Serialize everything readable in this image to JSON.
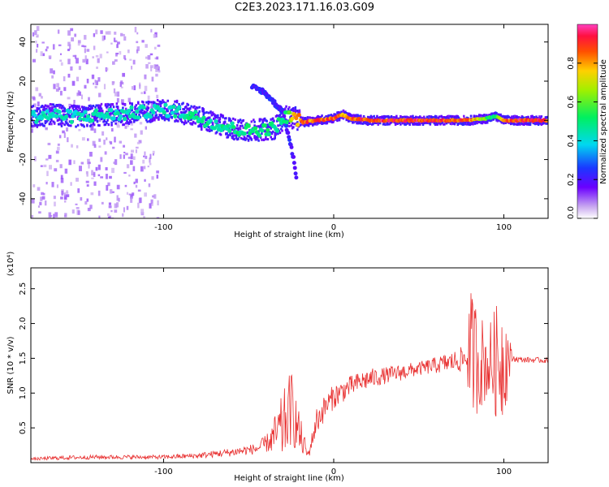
{
  "title": "C2E3.2023.171.16.03.G09",
  "chart_data": [
    {
      "type": "heatmap",
      "title": "C2E3.2023.171.16.03.G09",
      "xlabel": "Height of straight line (km)",
      "ylabel": "Frequency (Hz)",
      "xlim": [
        -178,
        126
      ],
      "ylim": [
        -50,
        49
      ],
      "x_ticks": [
        -100,
        0,
        100
      ],
      "x_tick_labels": [
        "-100",
        "0",
        "100"
      ],
      "y_ticks": [
        -40,
        -20,
        0,
        20,
        40
      ],
      "y_tick_labels": [
        "-40",
        "-20",
        "0",
        "20",
        "40"
      ],
      "colorbar": {
        "label": "Normalized spectral amplitude",
        "range": [
          0,
          1
        ],
        "ticks": [
          0.0,
          0.2,
          0.4,
          0.6,
          0.8
        ],
        "tick_labels": [
          "0.0",
          "0.2",
          "0.4",
          "0.6",
          "0.8"
        ]
      },
      "ridge": {
        "x": [
          -176,
          -165,
          -155,
          -145,
          -135,
          -125,
          -115,
          -105,
          -95,
          -85,
          -75,
          -65,
          -55,
          -45,
          -35,
          -28,
          -22,
          -18,
          -10,
          0,
          5,
          10,
          20,
          40,
          60,
          80,
          90,
          95,
          100,
          110,
          126
        ],
        "frequency": [
          2,
          3,
          2,
          2,
          3,
          3,
          4,
          5,
          5,
          3,
          0,
          -3,
          -5,
          -5,
          -4,
          2,
          1,
          -1,
          0,
          1,
          3,
          1,
          0,
          0,
          0,
          0,
          1,
          2,
          0,
          0,
          0
        ],
        "amplitude": [
          0.45,
          0.45,
          0.45,
          0.45,
          0.45,
          0.45,
          0.45,
          0.45,
          0.45,
          0.5,
          0.5,
          0.5,
          0.5,
          0.55,
          0.5,
          0.55,
          0.85,
          0.9,
          0.9,
          0.9,
          0.85,
          0.9,
          0.95,
          0.95,
          0.95,
          0.9,
          0.6,
          0.5,
          0.9,
          0.95,
          0.95
        ]
      },
      "side_branch": {
        "x": [
          -48,
          -42,
          -38,
          -34,
          -30,
          -26,
          -23,
          -22
        ],
        "frequency": [
          17,
          15,
          12,
          8,
          5,
          -10,
          -22,
          -29
        ]
      },
      "grid": false
    },
    {
      "type": "line",
      "xlabel": "Height of straight line (km)",
      "ylabel": "SNR (10 * v/v)",
      "y_multiplier": "(x10⁴)",
      "xlim": [
        -178,
        126
      ],
      "ylim": [
        0,
        2.8
      ],
      "x_ticks": [
        -100,
        0,
        100
      ],
      "x_tick_labels": [
        "-100",
        "0",
        "100"
      ],
      "y_ticks": [
        0.5,
        1.0,
        1.5,
        2.0,
        2.5
      ],
      "y_tick_labels": [
        "0.5",
        "1.0",
        "1.5",
        "2.0",
        "2.5"
      ],
      "series": [
        {
          "color": "#e83030",
          "x": [
            -178,
            -160,
            -140,
            -120,
            -100,
            -80,
            -60,
            -45,
            -38,
            -30,
            -25,
            -20,
            -15,
            -10,
            -5,
            0,
            10,
            20,
            30,
            40,
            50,
            60,
            70,
            78,
            80,
            85,
            90,
            95,
            100,
            105,
            110,
            126
          ],
          "y": [
            0.05,
            0.07,
            0.08,
            0.08,
            0.08,
            0.1,
            0.15,
            0.2,
            0.3,
            0.5,
            0.8,
            0.4,
            0.1,
            0.6,
            0.8,
            0.95,
            1.1,
            1.2,
            1.25,
            1.3,
            1.35,
            1.4,
            1.45,
            1.5,
            1.6,
            1.5,
            1.4,
            1.45,
            1.5,
            1.5,
            1.48,
            1.47
          ],
          "noise": [
            0.02,
            0.03,
            0.03,
            0.03,
            0.03,
            0.04,
            0.06,
            0.08,
            0.15,
            0.5,
            0.55,
            0.3,
            0.06,
            0.2,
            0.18,
            0.18,
            0.15,
            0.15,
            0.12,
            0.12,
            0.1,
            0.12,
            0.15,
            0.2,
            0.9,
            0.8,
            0.5,
            0.8,
            0.9,
            0.05,
            0.04,
            0.04
          ]
        }
      ]
    }
  ]
}
